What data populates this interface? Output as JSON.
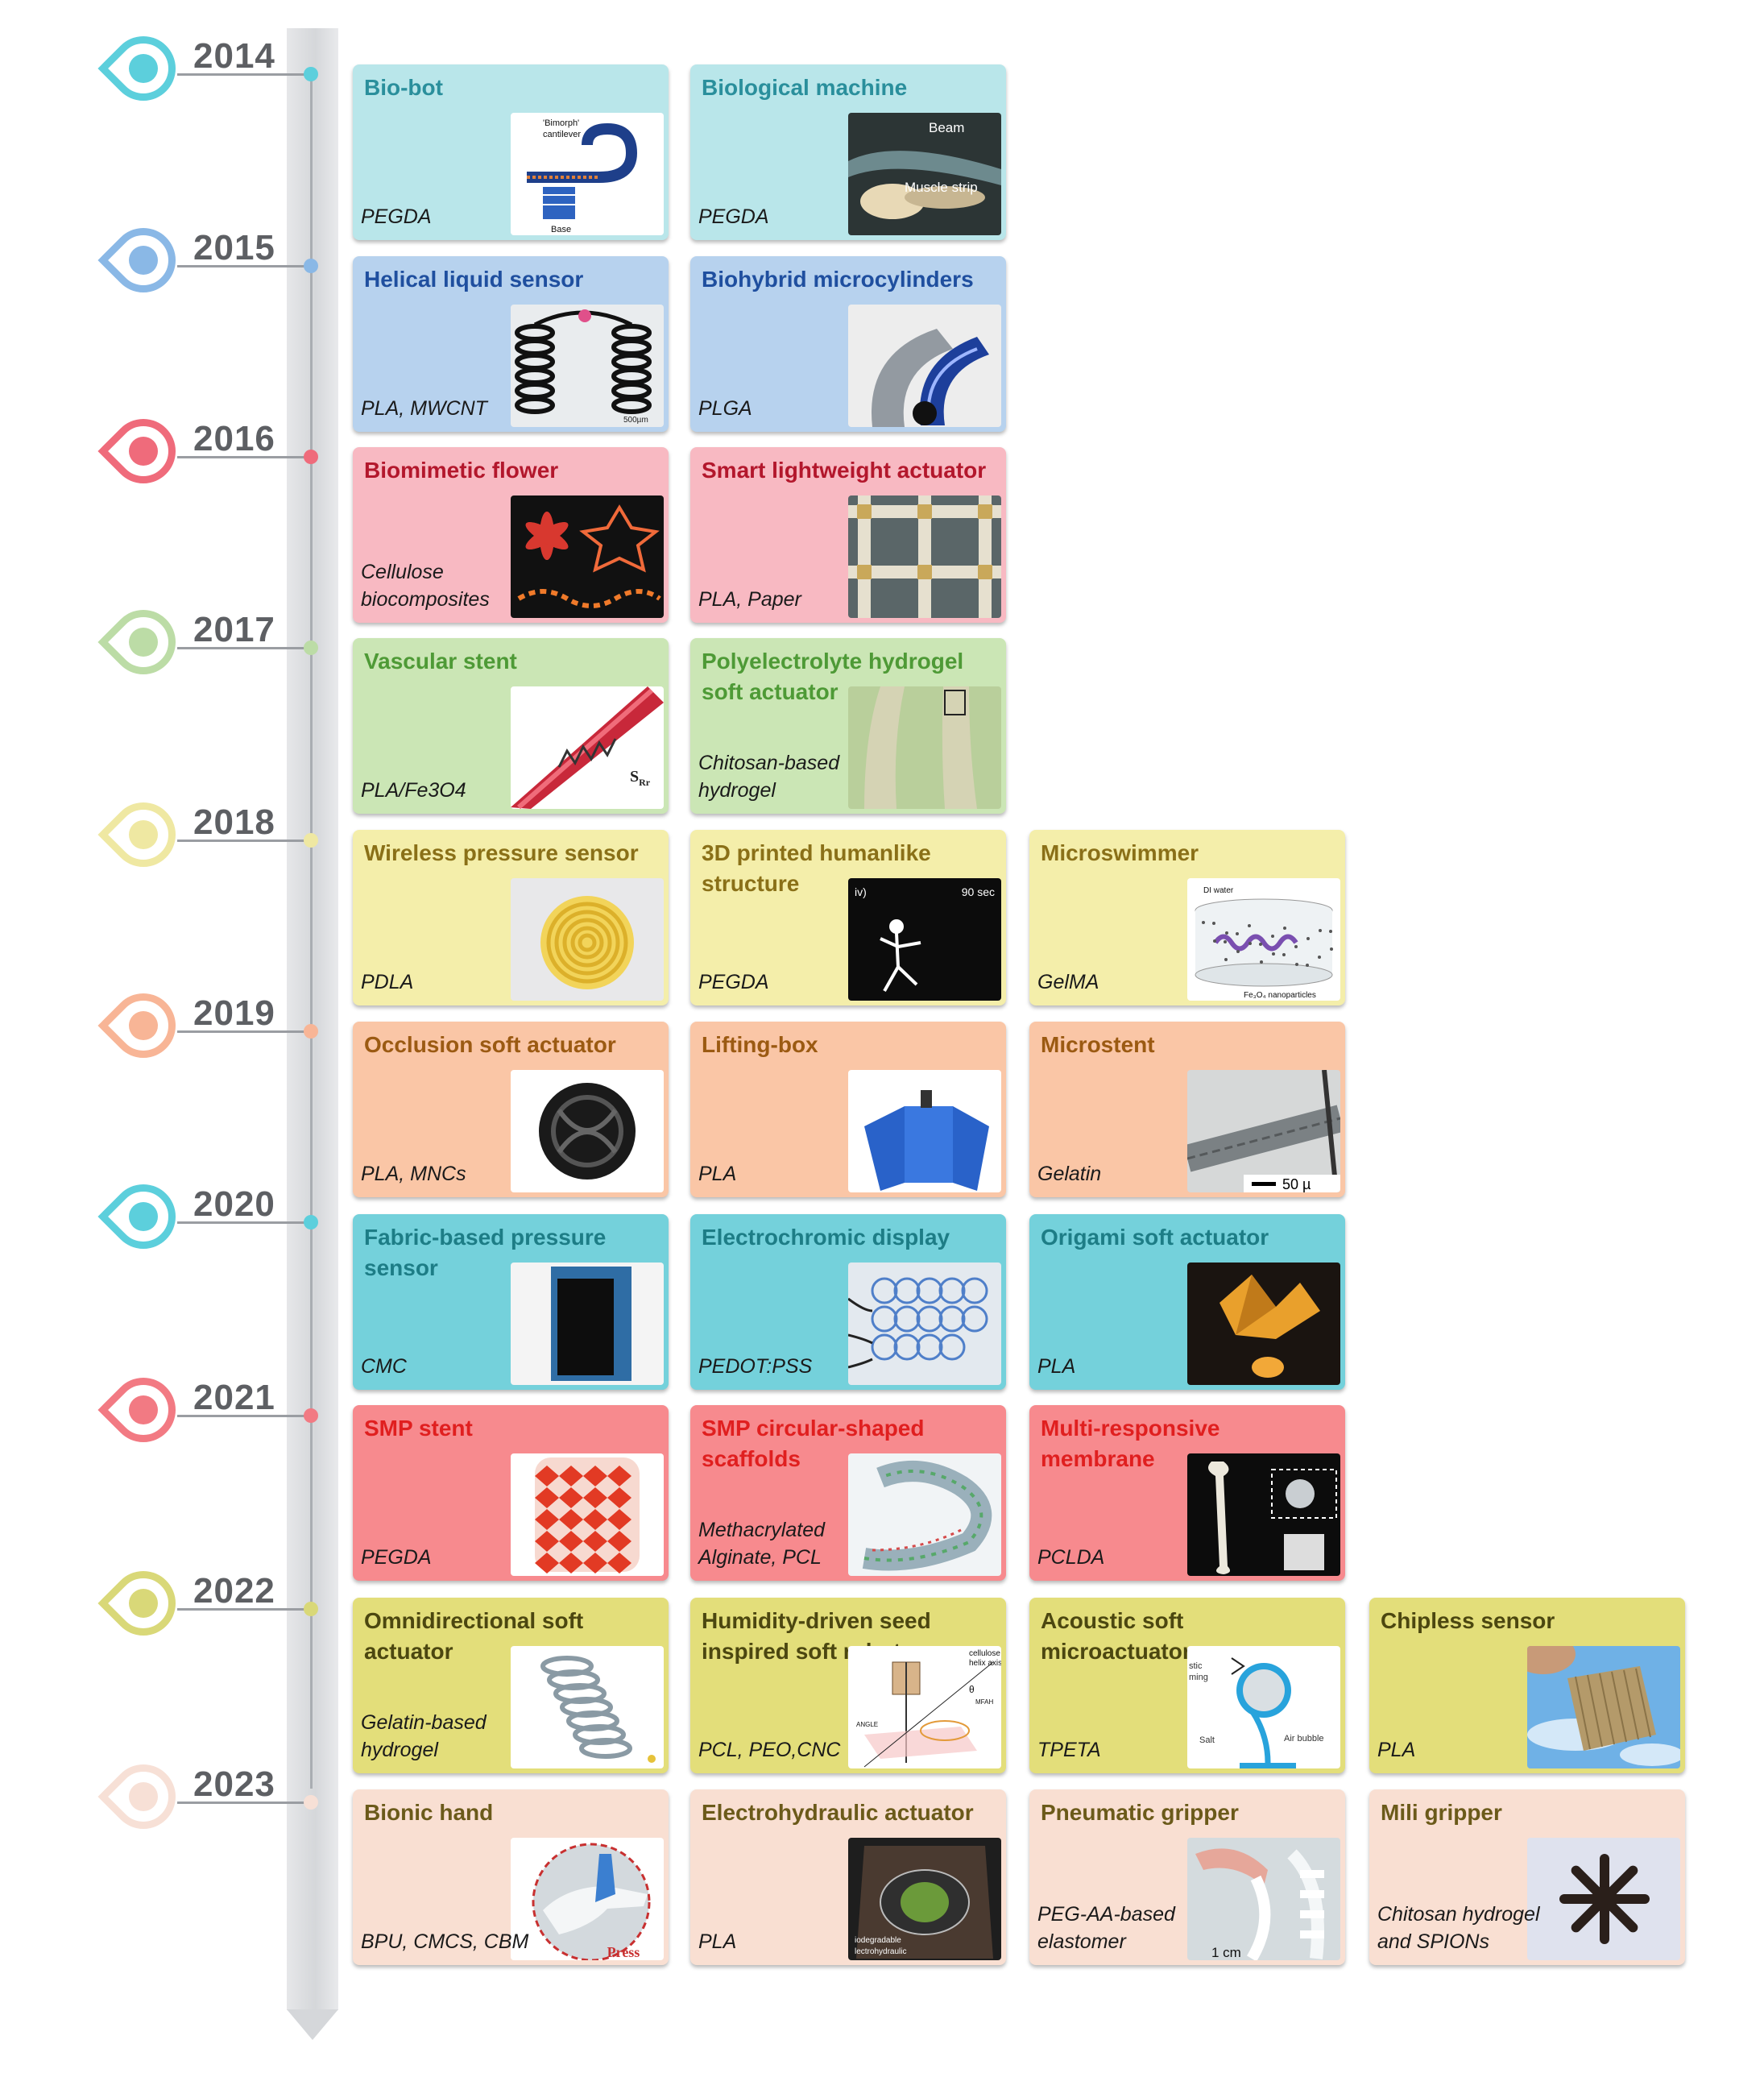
{
  "rows": [
    {
      "year": "2014",
      "colors": {
        "bg": "#b9e6ea",
        "title": "#2a8f9c",
        "pin": "#5ccfdc"
      },
      "cards": [
        {
          "title": "Bio-bot",
          "material": "PEGDA",
          "thumb_kind": "bimorph-cantilever-diagram",
          "thumb_labels": [
            "'Bimorph'",
            "cantilever",
            "Base"
          ]
        },
        {
          "title": "Biological machine",
          "material": "PEGDA",
          "thumb_kind": "beam-muscle-strip-photo",
          "thumb_labels": [
            "Beam",
            "Muscle strip"
          ]
        }
      ]
    },
    {
      "year": "2015",
      "colors": {
        "bg": "#b7d2ee",
        "title": "#1f4f9f",
        "pin": "#8ab8e6"
      },
      "cards": [
        {
          "title": "Helical liquid sensor",
          "material": "PLA, MWCNT",
          "thumb_kind": "helical-coil-photo",
          "thumb_labels": [
            "500µm"
          ]
        },
        {
          "title": "Biohybrid microcylinders",
          "material": "PLGA",
          "thumb_kind": "microcylinder-photo",
          "thumb_labels": []
        }
      ]
    },
    {
      "year": "2016",
      "colors": {
        "bg": "#f8b9c2",
        "title": "#b3172c",
        "pin": "#ef6b7b"
      },
      "cards": [
        {
          "title": "Biomimetic flower",
          "material": "Cellulose biocomposites",
          "thumb_kind": "flower-photo",
          "thumb_labels": []
        },
        {
          "title": "Smart lightweight actuator",
          "material": "PLA, Paper",
          "thumb_kind": "lattice-photo",
          "thumb_labels": []
        }
      ]
    },
    {
      "year": "2017",
      "colors": {
        "bg": "#cbe6b5",
        "title": "#4e9a36",
        "pin": "#bcdca6"
      },
      "cards": [
        {
          "title": "Vascular stent",
          "material": "PLA/Fe3O4",
          "thumb_kind": "vascular-stent-illustration",
          "thumb_labels": [
            "S",
            "Rr"
          ]
        },
        {
          "title": "Polyelectrolyte hydrogel soft actuator",
          "material": "Chitosan-based hydrogel",
          "thumb_kind": "hydrogel-mesh-photo",
          "thumb_labels": []
        }
      ]
    },
    {
      "year": "2018",
      "colors": {
        "bg": "#f4eeaa",
        "title": "#8a7018",
        "pin": "#efe8a2"
      },
      "cards": [
        {
          "title": "Wireless pressure sensor",
          "material": "PDLA",
          "thumb_kind": "spiral-coil-photo",
          "thumb_labels": []
        },
        {
          "title": "3D printed humanlike structure",
          "material": "PEGDA",
          "thumb_kind": "stick-figure-photo",
          "thumb_labels": [
            "iv)",
            "90 sec"
          ]
        },
        {
          "title": "Microswimmer",
          "material": "GelMA",
          "thumb_kind": "microswimmer-diagram",
          "thumb_labels": [
            "DI water",
            "Fe₃O₄ nanoparticles"
          ]
        }
      ]
    },
    {
      "year": "2019",
      "colors": {
        "bg": "#fac6a6",
        "title": "#9b5a12",
        "pin": "#f8b596"
      },
      "cards": [
        {
          "title": "Occlusion soft actuator",
          "material": "PLA, MNCs",
          "thumb_kind": "occluder-knot-photo",
          "thumb_labels": []
        },
        {
          "title": "Lifting-box",
          "material": "PLA",
          "thumb_kind": "lifting-box-render",
          "thumb_labels": []
        },
        {
          "title": "Microstent",
          "material": "Gelatin",
          "thumb_kind": "microstent-photo",
          "thumb_labels": [
            "50 µ"
          ]
        }
      ]
    },
    {
      "year": "2020",
      "colors": {
        "bg": "#74d1db",
        "title": "#1d7d86",
        "pin": "#5ccfdc"
      },
      "cards": [
        {
          "title": "Fabric-based pressure sensor",
          "material": "CMC",
          "thumb_kind": "fabric-patch-photo",
          "thumb_labels": []
        },
        {
          "title": "Electrochromic display",
          "material": "PEDOT:PSS",
          "thumb_kind": "electrochromic-rings-photo",
          "thumb_labels": []
        },
        {
          "title": "Origami soft actuator",
          "material": "PLA",
          "thumb_kind": "origami-photo",
          "thumb_labels": []
        }
      ]
    },
    {
      "year": "2021",
      "colors": {
        "bg": "#f78a8e",
        "title": "#e01f1f",
        "pin": "#f27a83"
      },
      "cards": [
        {
          "title": "SMP stent",
          "material": "PEGDA",
          "thumb_kind": "smp-stent-render",
          "thumb_labels": []
        },
        {
          "title": "SMP circular-shaped scaffolds",
          "material": "Methacrylated Alginate, PCL",
          "thumb_kind": "scaffold-spiral-render",
          "thumb_labels": []
        },
        {
          "title": "Multi-responsive membrane",
          "material": "PCLDA",
          "thumb_kind": "bone-membrane-photo",
          "thumb_labels": []
        }
      ]
    },
    {
      "year": "2022",
      "colors": {
        "bg": "#e3de7a",
        "title": "#4c4710",
        "pin": "#d9d878"
      },
      "cards": [
        {
          "title": "Omnidirectional soft actuator",
          "material": "Gelatin-based hydrogel",
          "thumb_kind": "spring-actuator-photo",
          "thumb_labels": []
        },
        {
          "title": "Humidity-driven seed inspired soft robot",
          "material": "PCL, PEO,CNC",
          "thumb_kind": "seed-robot-diagram",
          "thumb_labels": [
            "cellulose",
            "helix axis",
            "θ",
            "MFAH",
            "ANGLE"
          ]
        },
        {
          "title": "Acoustic soft microactuator",
          "material": "TPETA",
          "thumb_kind": "bubble-actuator-diagram",
          "thumb_labels": [
            "stic",
            "ming",
            "Salt",
            "Air bubble"
          ]
        },
        {
          "title": "Chipless sensor",
          "material": "PLA",
          "thumb_kind": "chipless-sensor-photo",
          "thumb_labels": []
        }
      ]
    },
    {
      "year": "2023",
      "colors": {
        "bg": "#f9dfd2",
        "title": "#6b5a1a",
        "pin": "#f7e0d6"
      },
      "cards": [
        {
          "title": "Bionic hand",
          "material": "BPU, CMCS, CBM",
          "thumb_kind": "bionic-hand-photo",
          "thumb_labels": [
            "Press"
          ]
        },
        {
          "title": "Electrohydraulic actuator",
          "material": "PLA",
          "thumb_kind": "electrohydraulic-photo",
          "thumb_labels": [
            "iodegradable",
            "lectrohydraulic"
          ]
        },
        {
          "title": "Pneumatic gripper",
          "material": "PEG-AA-based elastomer",
          "thumb_kind": "pneumatic-gripper-photo",
          "thumb_labels": [
            "1 cm"
          ]
        },
        {
          "title": "Mili gripper",
          "material": "Chitosan hydrogel and SPIONs",
          "thumb_kind": "mili-gripper-photo",
          "thumb_labels": []
        }
      ]
    }
  ]
}
